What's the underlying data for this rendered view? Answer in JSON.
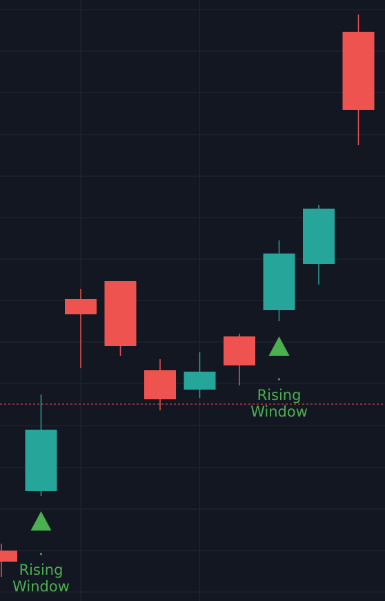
{
  "chart_data": {
    "type": "candlestick",
    "categories": [
      null,
      null,
      null,
      null,
      null,
      null,
      null,
      null,
      null,
      null
    ],
    "open": [
      73,
      159,
      437,
      463,
      334,
      306,
      383,
      421,
      488,
      824
    ],
    "high": [
      83,
      299,
      452,
      463,
      350,
      360,
      387,
      522,
      573,
      849
    ],
    "low": [
      35,
      152,
      337,
      355,
      276,
      294,
      312,
      405,
      458,
      660
    ],
    "close": [
      57,
      248,
      415,
      369,
      292,
      332,
      341,
      503,
      568,
      711
    ],
    "up_color": "#26a69a",
    "down_color": "#ef5350",
    "ylim": [
      0,
      870
    ],
    "yticks": [
      13,
      73,
      133,
      193,
      254,
      315,
      375,
      435,
      495,
      555,
      615,
      675,
      736,
      796,
      856
    ],
    "xticks": [
      2,
      5
    ],
    "grid": true,
    "price_line": {
      "value": 285,
      "color": "#ef5350"
    },
    "annotations": [
      {
        "text": "Rising Window",
        "index": 1,
        "color": "#4caf50"
      },
      {
        "text": "Rising Window",
        "index": 7,
        "color": "#4caf50"
      }
    ]
  }
}
